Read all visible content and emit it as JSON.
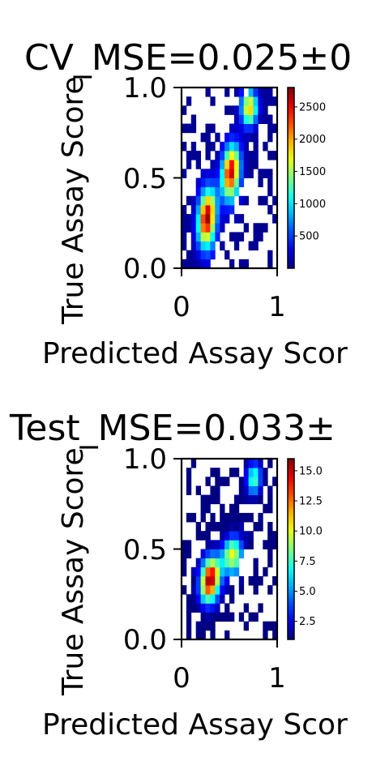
{
  "chart_data": [
    {
      "type": "heatmap",
      "title": "CV_MSE=0.025±0",
      "xlabel": "Predicted Assay Scor",
      "ylabel": "True Assay Score",
      "xlim": [
        0,
        1
      ],
      "ylim": [
        0,
        1
      ],
      "x_ticks": [
        "0",
        "1"
      ],
      "y_ticks": [
        "0.0",
        "0.5",
        "1.0"
      ],
      "colorbar": {
        "min": 0,
        "max": 2800,
        "ticks": [
          "500",
          "1000",
          "1500",
          "2000",
          "2500"
        ],
        "colormap": "jet"
      },
      "bins": 20,
      "ridges": [
        {
          "x": 0.27,
          "y": 0.27,
          "sx": 0.07,
          "sy": 0.13,
          "peak": 2800
        },
        {
          "x": 0.52,
          "y": 0.52,
          "sx": 0.07,
          "sy": 0.12,
          "peak": 2700
        },
        {
          "x": 0.7,
          "y": 0.9,
          "sx": 0.06,
          "sy": 0.07,
          "peak": 2500
        }
      ],
      "background_level": 80
    },
    {
      "type": "heatmap",
      "title": "Test_MSE=0.033±",
      "xlabel": "Predicted Assay Scor",
      "ylabel": "True Assay Score",
      "xlim": [
        0,
        1
      ],
      "ylim": [
        0,
        1
      ],
      "x_ticks": [
        "0",
        "1"
      ],
      "y_ticks": [
        "0.0",
        "0.5",
        "1.0"
      ],
      "colorbar": {
        "min": 1,
        "max": 16,
        "ticks": [
          "2.5",
          "5.0",
          "7.5",
          "10.0",
          "12.5",
          "15.0"
        ],
        "colormap": "jet"
      },
      "bins": 20,
      "ridges": [
        {
          "x": 0.3,
          "y": 0.33,
          "sx": 0.08,
          "sy": 0.1,
          "peak": 16
        },
        {
          "x": 0.55,
          "y": 0.45,
          "sx": 0.08,
          "sy": 0.08,
          "peak": 13
        },
        {
          "x": 0.75,
          "y": 0.9,
          "sx": 0.06,
          "sy": 0.07,
          "peak": 9
        }
      ],
      "background_level": 1.2
    }
  ]
}
